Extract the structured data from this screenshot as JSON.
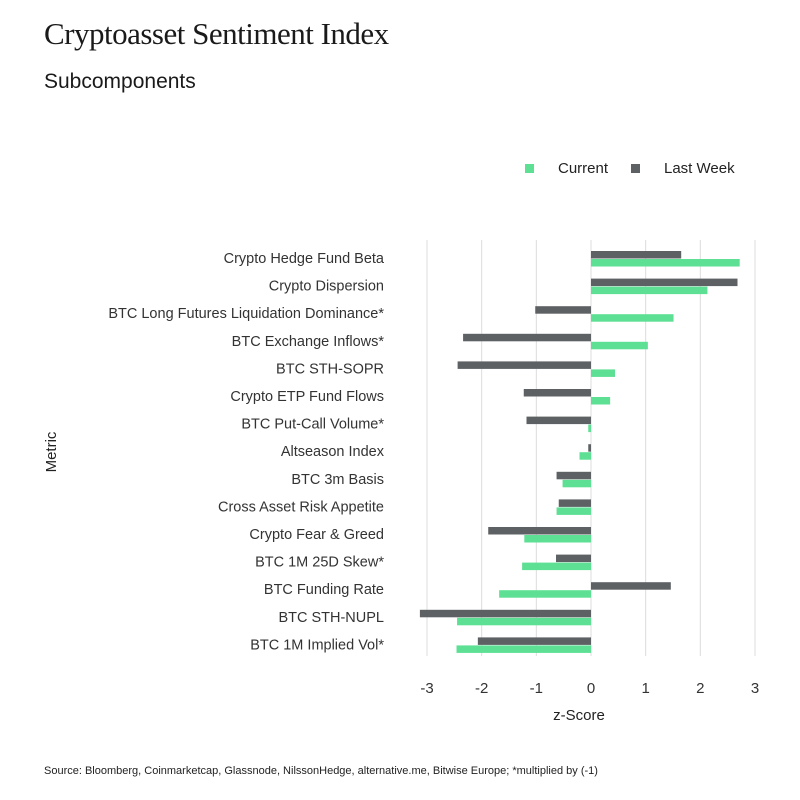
{
  "title": "Cryptoasset Sentiment Index",
  "subtitle": "Subcomponents",
  "source": "Source: Bloomberg, Coinmarketcap, Glassnode, NilssonHedge, alternative.me, Bitwise Europe; *multiplied by (-1)",
  "chart_data": {
    "type": "bar",
    "orientation": "horizontal",
    "xlabel": "z-Score",
    "ylabel": "Metric",
    "xlim": [
      -3,
      3
    ],
    "xticks": [
      -3,
      -2,
      -1,
      0,
      1,
      2,
      3
    ],
    "grid": "vertical",
    "legend_placement": "top-right",
    "categories": [
      "Crypto Hedge Fund Beta",
      "Crypto Dispersion",
      "BTC Long Futures Liquidation Dominance*",
      "BTC Exchange Inflows*",
      "BTC STH-SOPR",
      "Crypto ETP Fund Flows",
      "BTC Put-Call Volume*",
      "Altseason Index",
      "BTC 3m Basis",
      "Cross Asset Risk Appetite",
      "Crypto Fear & Greed",
      "BTC 1M 25D Skew*",
      "BTC Funding Rate",
      "BTC STH-NUPL",
      "BTC 1M Implied Vol*"
    ],
    "series": [
      {
        "name": "Current",
        "color": "#5ddf94",
        "values": [
          2.72,
          2.13,
          1.51,
          1.04,
          0.44,
          0.35,
          -0.05,
          -0.21,
          -0.52,
          -0.63,
          -1.22,
          -1.26,
          -1.68,
          -2.45,
          -2.46
        ]
      },
      {
        "name": "Last Week",
        "color": "#5d6163",
        "values": [
          1.65,
          2.68,
          -1.02,
          -2.34,
          -2.44,
          -1.23,
          -1.18,
          -0.05,
          -0.63,
          -0.59,
          -1.88,
          -0.64,
          1.46,
          -3.13,
          -2.07
        ]
      }
    ]
  }
}
